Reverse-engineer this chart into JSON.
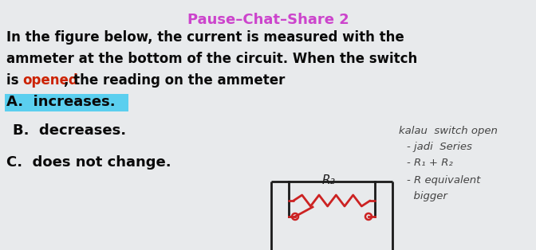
{
  "title": "Pause–Chat–Share 2",
  "title_color": "#cc44cc",
  "title_fontsize": 13,
  "bg_color": "#e8eaec",
  "question_line1": "In the figure below, the current is measured with the",
  "question_line2": "ammeter at the bottom of the circuit. When the switch",
  "question_line3_part1": "is ",
  "question_line3_word": "opened",
  "question_line3_part2": ", the reading on the ammeter",
  "opened_color": "#cc2200",
  "answer_A_label": "A.",
  "answer_A_text": " increases.",
  "answer_B": "B.  decreases.",
  "answer_C": "C.  does not change.",
  "answer_A_highlight": "#5bcfef",
  "text_color": "#0a0a0a",
  "note_color": "#444444",
  "note_line1": "kalau  switch open",
  "note_line2": "- jadi  Series",
  "note_line3": "- R₁ + R₂",
  "note_line4": "- R equivalent",
  "note_line5": "  bigger",
  "circuit_color": "#1a1a1a",
  "resistor_color": "#cc2222",
  "switch_color": "#cc2222",
  "R2_label": "R₂",
  "font_main_size": 12,
  "font_answer_size": 13,
  "font_note_size": 9.5
}
